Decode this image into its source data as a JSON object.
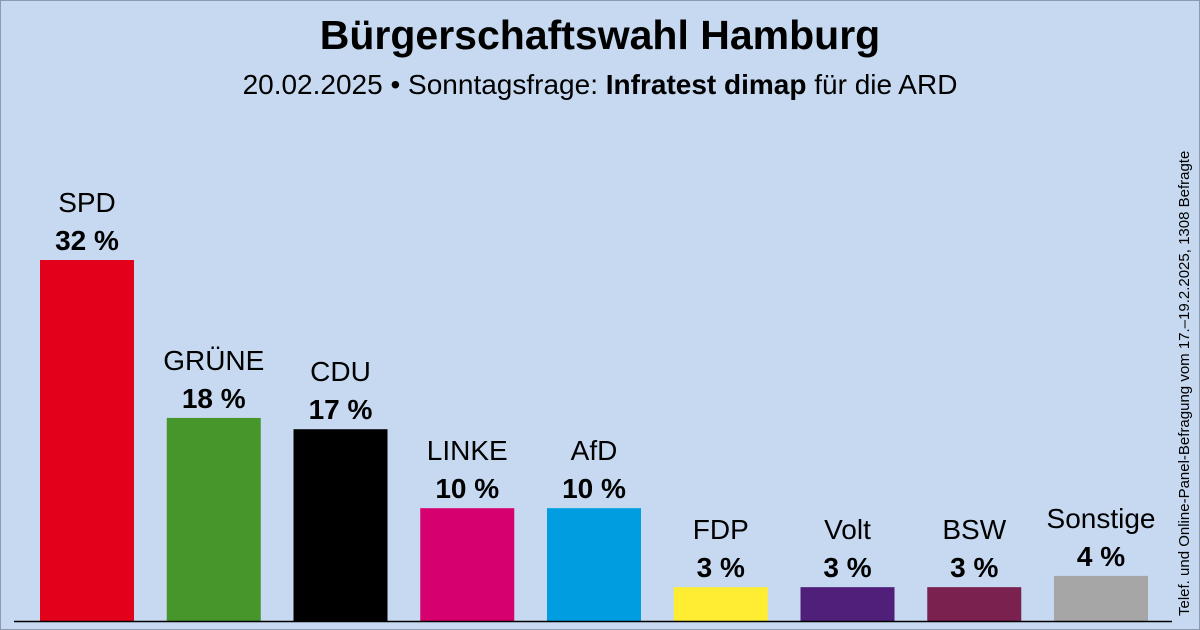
{
  "header": {
    "title": "Bürgerschaftswahl Hamburg",
    "subtitle_date": "20.02.2025 • Sonntagsfrage:",
    "subtitle_institute": "Infratest dimap",
    "subtitle_client": "für die ARD"
  },
  "side_note": "Telef. und Online-Panel-Befragung vom 17.–19.2.2025, 1308 Befragte",
  "chart_data": {
    "type": "bar",
    "categories": [
      "SPD",
      "GRÜNE",
      "CDU",
      "LINKE",
      "AfD",
      "FDP",
      "Volt",
      "BSW",
      "Sonstige"
    ],
    "values": [
      32,
      18,
      17,
      10,
      10,
      3,
      3,
      3,
      4
    ],
    "value_labels": [
      "32 %",
      "18 %",
      "17 %",
      "10 %",
      "10 %",
      "3 %",
      "3 %",
      "3 %",
      "4 %"
    ],
    "colors": [
      "#e3001b",
      "#46962b",
      "#000000",
      "#d6006e",
      "#009ee0",
      "#ffed33",
      "#4f1f7a",
      "#7b2150",
      "#a6a6a6"
    ],
    "ylim": [
      0,
      32
    ],
    "grid": false,
    "legend": "none"
  }
}
